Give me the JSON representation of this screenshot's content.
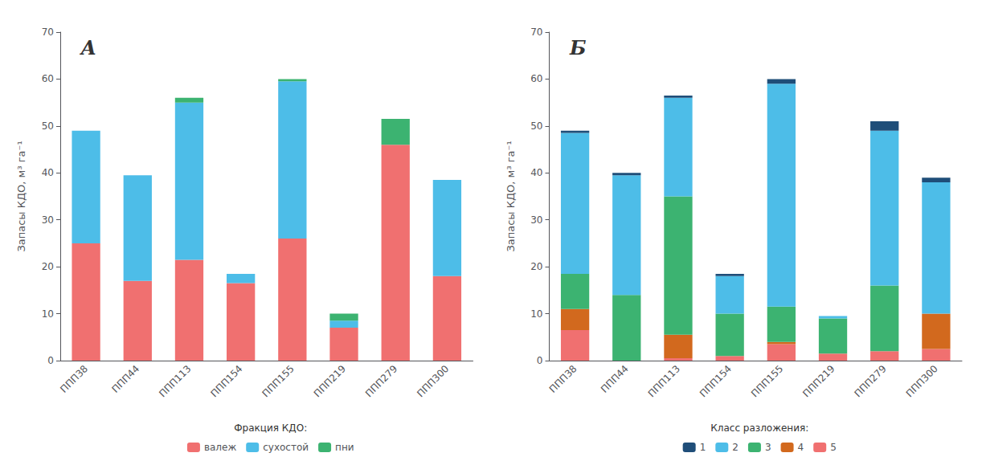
{
  "chart_data": [
    {
      "type": "bar",
      "stacked": true,
      "title": "А",
      "ylabel": "Запасы КДО, м³ га⁻¹",
      "categories": [
        "ППП38",
        "ППП44",
        "ППП113",
        "ППП154",
        "ППП155",
        "ППП219",
        "ППП279",
        "ППП300"
      ],
      "series": [
        {
          "name": "валеж",
          "color": "#F07070",
          "values": [
            25.0,
            17.0,
            21.5,
            16.5,
            26.0,
            7.0,
            46.0,
            18.0
          ]
        },
        {
          "name": "сухостой",
          "color": "#4DBDE8",
          "values": [
            24.0,
            22.5,
            33.5,
            2.0,
            33.5,
            1.5,
            0.0,
            20.5
          ]
        },
        {
          "name": "пни",
          "color": "#3CB371",
          "values": [
            0.0,
            0.0,
            1.0,
            0.0,
            0.5,
            1.5,
            5.5,
            0.0
          ]
        }
      ],
      "legend_title": "Фракция КДО:",
      "legend": "bottom",
      "ylim": [
        0,
        70
      ],
      "yticks": [
        0,
        10,
        20,
        30,
        40,
        50,
        60,
        70
      ],
      "grid": false
    },
    {
      "type": "bar",
      "stacked": true,
      "title": "Б",
      "ylabel": "Запасы КДО, м³ га⁻¹",
      "categories": [
        "ППП38",
        "ППП44",
        "ППП113",
        "ППП154",
        "ППП155",
        "ППП219",
        "ППП279",
        "ППП300"
      ],
      "series": [
        {
          "name": "5",
          "color": "#F07070",
          "values": [
            6.5,
            0.0,
            0.5,
            1.0,
            3.5,
            1.5,
            2.0,
            2.5
          ]
        },
        {
          "name": "4",
          "color": "#D2691E",
          "values": [
            4.5,
            0.0,
            5.0,
            0.0,
            0.5,
            0.0,
            0.0,
            7.5
          ]
        },
        {
          "name": "3",
          "color": "#3CB371",
          "values": [
            7.5,
            14.0,
            29.5,
            9.0,
            7.5,
            7.5,
            14.0,
            0.0
          ]
        },
        {
          "name": "2",
          "color": "#4DBDE8",
          "values": [
            30.0,
            25.5,
            21.0,
            8.0,
            47.5,
            0.5,
            33.0,
            28.0
          ]
        },
        {
          "name": "1",
          "color": "#1F4E79",
          "values": [
            0.5,
            0.5,
            0.5,
            0.5,
            1.0,
            0.0,
            2.0,
            1.0
          ]
        }
      ],
      "legend_title": "Класс разложения:",
      "legend": "bottom",
      "ylim": [
        0,
        70
      ],
      "yticks": [
        0,
        10,
        20,
        30,
        40,
        50,
        60,
        70
      ],
      "grid": false
    }
  ]
}
